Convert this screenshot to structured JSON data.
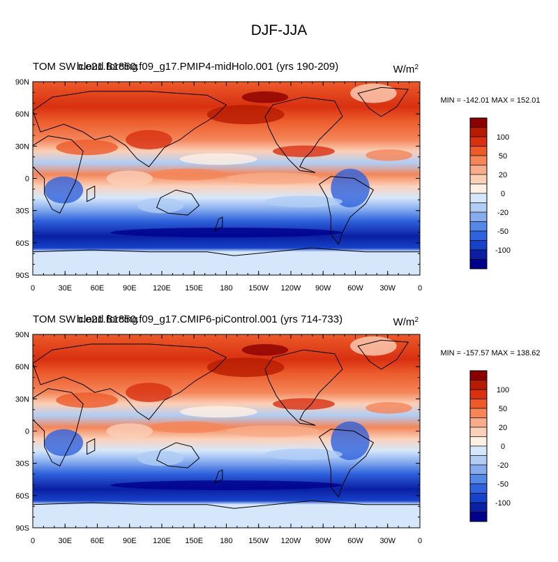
{
  "figure": {
    "title": "DJF-JJA"
  },
  "panels": [
    {
      "variable_label": "TOM SW cloud forcing",
      "case_label": "b.e21.B1850.f09_g17.PMIP4-midHolo.001 (yrs 190-209)",
      "units_base": "W/m",
      "units_exp": "2",
      "stats": "MIN = -142.01 MAX = 152.01"
    },
    {
      "variable_label": "TOM SW cloud forcing",
      "case_label": "b.e21.B1850.f09_g17.CMIP6-piControl.001 (yrs 714-733)",
      "units_base": "W/m",
      "units_exp": "2",
      "stats": "MIN = -157.57 MAX = 138.62"
    }
  ],
  "axes": {
    "lat_ticks": [
      "90N",
      "60N",
      "30N",
      "0",
      "30S",
      "60S",
      "90S"
    ],
    "lon_ticks": [
      "0",
      "30E",
      "60E",
      "90E",
      "120E",
      "150E",
      "180",
      "150W",
      "120W",
      "90W",
      "60W",
      "30W",
      "0"
    ]
  },
  "colorbar": {
    "labels": [
      "100",
      "50",
      "20",
      "0",
      "-20",
      "-50",
      "-100"
    ],
    "colors": [
      "#8b0000",
      "#b71c00",
      "#d83010",
      "#ec5a2a",
      "#f4865a",
      "#f8ac8a",
      "#fbd0b8",
      "#fff0e4",
      "#d6e7fb",
      "#b0cdf5",
      "#86acee",
      "#5688e6",
      "#2f62dc",
      "#1542c8",
      "#0a1fa3",
      "#00008b"
    ]
  }
}
